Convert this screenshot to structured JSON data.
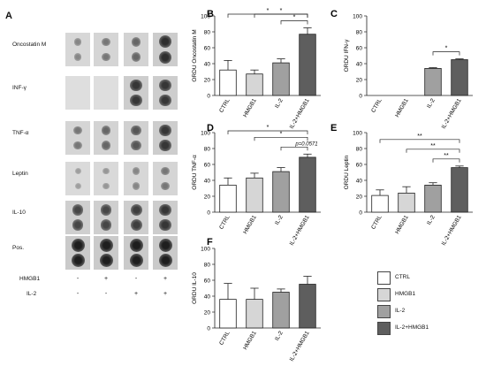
{
  "panel_a": {
    "letter": "A",
    "rows": [
      {
        "label": "Oncostatin M",
        "intensity": [
          0.35,
          0.45,
          0.55,
          0.9
        ]
      },
      {
        "label": "INF-γ",
        "intensity": [
          0.0,
          0.0,
          0.85,
          0.85
        ]
      },
      {
        "label": "TNF-α",
        "intensity": [
          0.45,
          0.55,
          0.65,
          0.85
        ]
      },
      {
        "label": "Leptin",
        "intensity": [
          0.2,
          0.25,
          0.35,
          0.45
        ]
      },
      {
        "label": "IL-10",
        "intensity": [
          0.75,
          0.75,
          0.8,
          0.85
        ]
      },
      {
        "label": "Pos.",
        "intensity": [
          1.0,
          1.0,
          1.0,
          1.0
        ]
      }
    ],
    "conditions": [
      {
        "label": "HMGB1",
        "signs": [
          "-",
          "+",
          "-",
          "+"
        ]
      },
      {
        "label": "IL-2",
        "signs": [
          "-",
          "-",
          "+",
          "+"
        ]
      }
    ]
  },
  "legend": {
    "items": [
      {
        "label": "CTRL",
        "color": "#ffffff"
      },
      {
        "label": "HMGB1",
        "color": "#d6d6d6"
      },
      {
        "label": "IL-2",
        "color": "#a0a0a0"
      },
      {
        "label": "IL-2+HMGB1",
        "color": "#5e5e5e"
      }
    ]
  },
  "chart_data": [
    {
      "panel": "B",
      "type": "bar",
      "categories": [
        "CTRL",
        "HMGB1",
        "IL-2",
        "IL-2+HMGB1"
      ],
      "values": [
        32,
        27,
        41,
        77
      ],
      "errors": [
        12,
        5,
        5,
        8
      ],
      "ylabel": "ORDU Oncostatin M",
      "ylim": [
        0,
        100
      ],
      "significance": [
        {
          "from": 0,
          "to": 3,
          "label": "*"
        },
        {
          "from": 1,
          "to": 3,
          "label": "*"
        },
        {
          "from": 2,
          "to": 3,
          "label": "*"
        }
      ]
    },
    {
      "panel": "C",
      "type": "bar",
      "categories": [
        "CTRL",
        "HMGB1",
        "IL-2",
        "IL-2+HMGB1"
      ],
      "values": [
        0,
        0,
        34,
        45
      ],
      "errors": [
        0,
        0,
        1,
        1
      ],
      "ylabel": "ORDU IFN-γ",
      "ylim": [
        0,
        100
      ],
      "significance": [
        {
          "from": 2,
          "to": 3,
          "label": "*"
        }
      ]
    },
    {
      "panel": "D",
      "type": "bar",
      "categories": [
        "CTRL",
        "HMGB1",
        "IL-2",
        "IL-2+HMGB1"
      ],
      "values": [
        34,
        43,
        51,
        69
      ],
      "errors": [
        9,
        6,
        5,
        4
      ],
      "ylabel": "ORDU TNF-α",
      "ylim": [
        0,
        100
      ],
      "significance": [
        {
          "from": 0,
          "to": 3,
          "label": "*"
        },
        {
          "from": 1,
          "to": 3,
          "label": "*"
        },
        {
          "from": 2,
          "to": 3,
          "label": "p=0.0571"
        }
      ]
    },
    {
      "panel": "E",
      "type": "bar",
      "categories": [
        "CTRL",
        "HMGB1",
        "IL-2",
        "IL-2+HMGB1"
      ],
      "values": [
        21,
        24,
        34,
        56
      ],
      "errors": [
        7,
        8,
        3,
        2
      ],
      "ylabel": "ORDU Leptin",
      "ylim": [
        0,
        100
      ],
      "significance": [
        {
          "from": 0,
          "to": 3,
          "label": "**"
        },
        {
          "from": 1,
          "to": 3,
          "label": "**"
        },
        {
          "from": 2,
          "to": 3,
          "label": "**"
        }
      ]
    },
    {
      "panel": "F",
      "type": "bar",
      "categories": [
        "CTRL",
        "HMGB1",
        "IL-2",
        "IL-2+HMGB1"
      ],
      "values": [
        36,
        36,
        45,
        55
      ],
      "errors": [
        20,
        14,
        4,
        10
      ],
      "ylabel": "ORDU IL-10",
      "ylim": [
        0,
        100
      ],
      "significance": []
    }
  ]
}
